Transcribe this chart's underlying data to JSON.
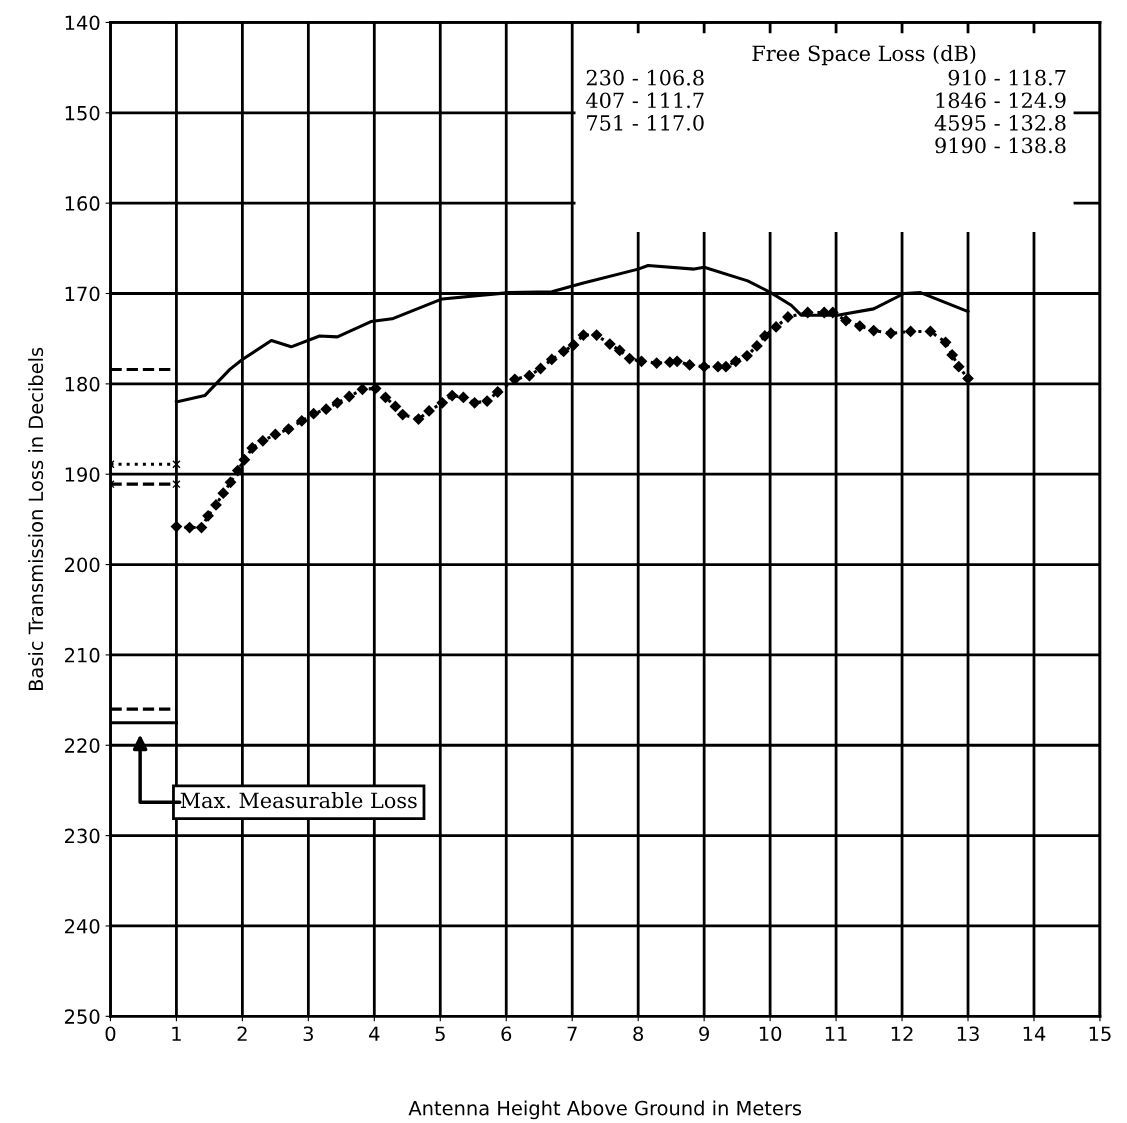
{
  "chart_data": {
    "type": "line",
    "xlabel": "Antenna Height Above Ground in Meters",
    "ylabel": "Basic Transmission Loss in Decibels",
    "xlim": [
      0,
      15
    ],
    "xticks": [
      0,
      1,
      2,
      3,
      4,
      5,
      6,
      7,
      8,
      9,
      10,
      11,
      12,
      13,
      14,
      15
    ],
    "ylim": [
      250,
      140
    ],
    "yticks": [
      140,
      150,
      160,
      170,
      180,
      190,
      200,
      210,
      220,
      230,
      240,
      250
    ],
    "grid": true,
    "legend": false,
    "series": [
      {
        "color": "#000000",
        "line_style": "solid",
        "marker": "none",
        "x": [
          1.0,
          1.43,
          1.81,
          2.0,
          2.44,
          2.74,
          3.17,
          3.44,
          3.95,
          4.27,
          5.03,
          6.04,
          6.69,
          7.14,
          8.0,
          8.15,
          8.85,
          9.0,
          9.66,
          10.01,
          10.32,
          10.47,
          11.02,
          11.57,
          12.03,
          12.28,
          13.0
        ],
        "values": [
          182.0,
          181.3,
          178.4,
          177.3,
          175.2,
          175.9,
          174.7,
          174.8,
          173.1,
          172.8,
          170.6,
          169.9,
          169.8,
          168.9,
          167.3,
          166.9,
          167.3,
          167.1,
          168.6,
          169.9,
          171.3,
          172.4,
          172.4,
          171.7,
          170.0,
          169.9,
          172.0
        ]
      },
      {
        "color": "#000000",
        "line_style": "dotted",
        "marker": "diamond",
        "x": [
          1.0,
          1.2,
          1.38,
          1.48,
          1.6,
          1.71,
          1.82,
          1.93,
          2.03,
          2.15,
          2.31,
          2.5,
          2.7,
          2.9,
          3.08,
          3.27,
          3.44,
          3.62,
          3.82,
          4.02,
          4.17,
          4.32,
          4.43,
          4.67,
          4.83,
          5.03,
          5.18,
          5.35,
          5.52,
          5.71,
          5.87,
          6.13,
          6.35,
          6.52,
          6.69,
          6.87,
          7.02,
          7.17,
          7.37,
          7.57,
          7.72,
          7.87,
          8.05,
          8.28,
          8.48,
          8.59,
          8.78,
          9.0,
          9.21,
          9.33,
          9.48,
          9.65,
          9.8,
          9.92,
          10.09,
          10.27,
          10.57,
          10.82,
          10.95,
          11.15,
          11.36,
          11.57,
          11.83,
          12.13,
          12.43,
          12.66,
          12.76,
          12.86,
          13.0
        ],
        "values": [
          195.8,
          195.9,
          195.9,
          194.6,
          193.4,
          192.1,
          190.9,
          189.6,
          188.4,
          187.1,
          186.3,
          185.6,
          185.0,
          184.1,
          183.3,
          182.8,
          182.1,
          181.4,
          180.6,
          180.5,
          181.5,
          182.5,
          183.4,
          183.9,
          183.0,
          182.1,
          181.3,
          181.5,
          182.1,
          181.9,
          180.9,
          179.5,
          179.1,
          178.3,
          177.3,
          176.4,
          175.7,
          174.6,
          174.6,
          175.6,
          176.3,
          177.2,
          177.5,
          177.7,
          177.6,
          177.5,
          177.9,
          178.1,
          178.1,
          178.1,
          177.5,
          176.9,
          175.8,
          174.7,
          173.7,
          172.6,
          172.1,
          172.1,
          172.1,
          173.0,
          173.6,
          174.1,
          174.4,
          174.2,
          174.2,
          175.4,
          176.8,
          178.1,
          179.4
        ]
      },
      {
        "color": "#000000",
        "line_style": "dashed",
        "marker": "none",
        "x": [
          0,
          1
        ],
        "values": [
          178.4,
          178.4
        ]
      },
      {
        "color": "#000000",
        "line_style": "dotted",
        "marker": "cross",
        "x": [
          0,
          1
        ],
        "values": [
          188.9,
          188.9
        ]
      },
      {
        "color": "#000000",
        "line_style": "dashed",
        "marker": "cross",
        "x": [
          0,
          1
        ],
        "values": [
          191.1,
          191.1
        ]
      },
      {
        "color": "#000000",
        "line_style": "dashed",
        "marker": "none",
        "x": [
          0,
          1
        ],
        "values": [
          216.0,
          216.0
        ]
      },
      {
        "color": "#000000",
        "line_style": "solid",
        "marker": "none",
        "x": [
          0,
          1
        ],
        "values": [
          217.5,
          217.5
        ]
      }
    ],
    "annotations": [
      "Max. Measurable Loss",
      "Free Space Loss (dB)",
      "230 - 106.8",
      "407 - 111.7",
      "751 - 117.0",
      "910 - 118.7",
      "1846 - 124.9",
      "4595 - 132.8",
      "9190 - 138.8"
    ]
  }
}
